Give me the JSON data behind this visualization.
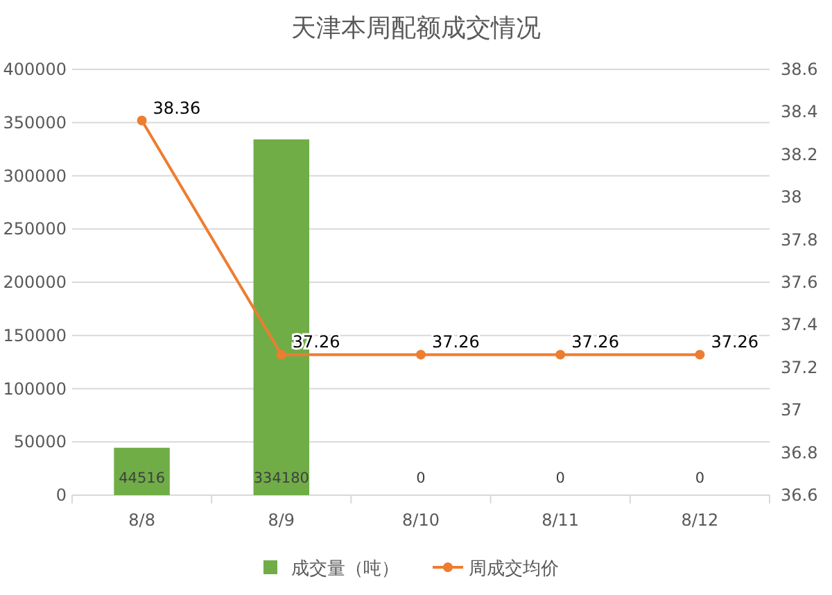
{
  "chart_data": {
    "type": "bar",
    "title": "天津本周配额成交情况",
    "categories": [
      "8/8",
      "8/9",
      "8/10",
      "8/11",
      "8/12"
    ],
    "series": [
      {
        "name": "成交量（吨）",
        "color": "#70ad47",
        "values": [
          44516,
          334180,
          0,
          0,
          0
        ]
      },
      {
        "name": "周成交均价",
        "type": "line",
        "axis": "y2",
        "color": "#ed7d31",
        "values": [
          38.36,
          37.26,
          37.26,
          37.26,
          37.26
        ]
      }
    ],
    "ylim": [
      0,
      400000
    ],
    "yticks": [
      0,
      50000,
      100000,
      150000,
      200000,
      250000,
      300000,
      350000,
      400000
    ],
    "y2lim": [
      36.6,
      38.6
    ],
    "y2ticks": [
      36.6,
      36.8,
      37,
      37.2,
      37.4,
      37.6,
      37.8,
      38,
      38.2,
      38.4,
      38.6
    ],
    "grid": "y",
    "legend": "bottom",
    "data_labels": true,
    "marker": "circle",
    "line_style": "solid"
  }
}
